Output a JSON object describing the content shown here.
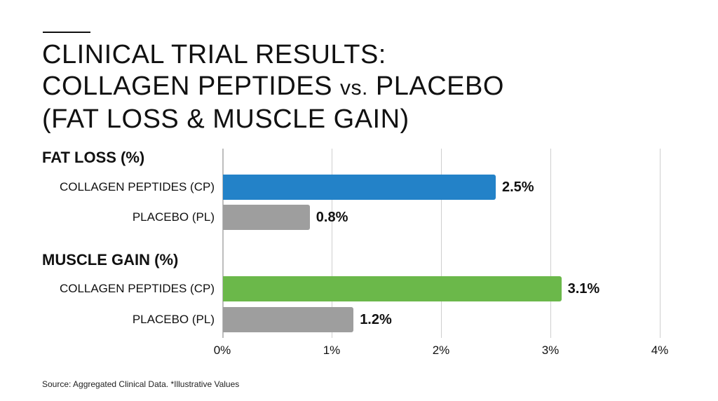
{
  "title": {
    "line1": "CLINICAL TRIAL RESULTS:",
    "line2a": "COLLAGEN PEPTIDES ",
    "line2b": "vs.",
    "line2c": " PLACEBO",
    "line3": "(FAT LOSS & MUSCLE GAIN)"
  },
  "groups": [
    {
      "label": "FAT LOSS (%)",
      "bars": [
        {
          "label": "COLLAGEN PEPTIDES (CP)",
          "value": 2.5,
          "value_label": "2.5%",
          "color": "#2382C8"
        },
        {
          "label": "PLACEBO (PL)",
          "value": 0.8,
          "value_label": "0.8%",
          "color": "#9E9E9E"
        }
      ]
    },
    {
      "label": "MUSCLE GAIN (%)",
      "bars": [
        {
          "label": "COLLAGEN PEPTIDES (CP)",
          "value": 3.1,
          "value_label": "3.1%",
          "color": "#6BB84A"
        },
        {
          "label": "PLACEBO (PL)",
          "value": 1.2,
          "value_label": "1.2%",
          "color": "#9E9E9E"
        }
      ]
    }
  ],
  "axis": {
    "ticks": [
      "0%",
      "1%",
      "2%",
      "3%",
      "4%"
    ]
  },
  "footer": {
    "source": "Source: Aggregated Clinical Data. *Illustrative Values"
  },
  "chart_data": {
    "type": "bar",
    "orientation": "horizontal",
    "title": "CLINICAL TRIAL RESULTS: COLLAGEN PEPTIDES vs. PLACEBO (FAT LOSS & MUSCLE GAIN)",
    "categories": [
      "FAT LOSS (%)",
      "MUSCLE GAIN (%)"
    ],
    "series": [
      {
        "name": "COLLAGEN PEPTIDES (CP)",
        "values": [
          2.5,
          3.1
        ],
        "colors": [
          "#2382C8",
          "#6BB84A"
        ]
      },
      {
        "name": "PLACEBO (PL)",
        "values": [
          0.8,
          1.2
        ],
        "colors": [
          "#9E9E9E",
          "#9E9E9E"
        ]
      }
    ],
    "xlabel": "",
    "ylabel": "",
    "xlim": [
      0,
      4
    ],
    "xticks": [
      "0%",
      "1%",
      "2%",
      "3%",
      "4%"
    ],
    "grid": true,
    "data_labels": [
      "2.5%",
      "0.8%",
      "3.1%",
      "1.2%"
    ],
    "annotation": "Source: Aggregated Clinical Data. *Illustrative Values"
  }
}
